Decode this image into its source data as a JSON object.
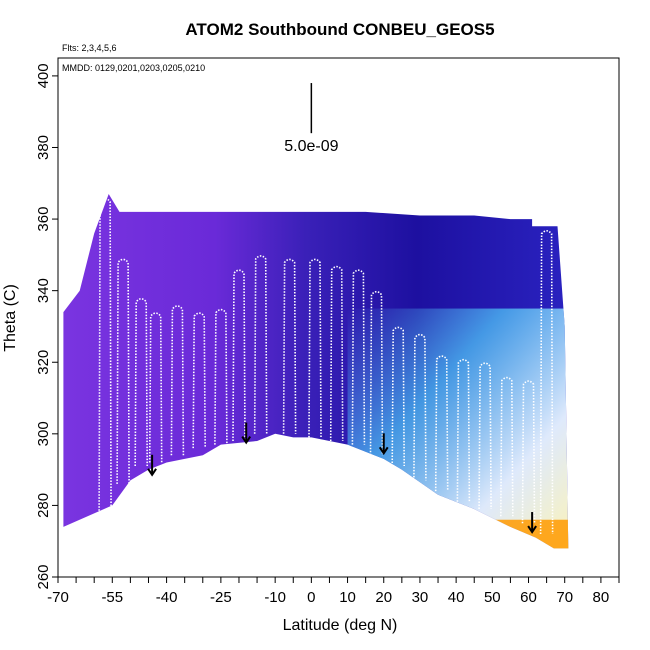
{
  "chart_data": {
    "type": "heatmap",
    "title": "ATOM2 Southbound CONBEU_GEOS5",
    "flights_note": "Flts: 2,3,4,5,6",
    "dates_note": "MMDD: 0129,0201,0203,0205,0210",
    "xlabel": "Latitude (deg N)",
    "ylabel": "Theta (C)",
    "xlim": [
      -70,
      85
    ],
    "ylim": [
      260,
      405
    ],
    "x_ticks": [
      -70,
      -55,
      -40,
      -25,
      -10,
      0,
      10,
      20,
      30,
      40,
      50,
      60,
      70,
      80
    ],
    "y_ticks": [
      260,
      280,
      300,
      320,
      340,
      360,
      380,
      400
    ],
    "scale_label": "5.0e-09",
    "scale_bar": {
      "x": 0,
      "y_top": 398,
      "y_bottom": 384
    },
    "colors": {
      "low_violet": "#7a34e0",
      "mid_blue": "#2a1aa8",
      "high_blue": "#3b6ef5",
      "cyan": "#4fc3f7",
      "pale": "#fff4b0",
      "orange": "#ff9a00"
    },
    "field_top": [
      [
        -68.5,
        334
      ],
      [
        -64,
        340
      ],
      [
        -60,
        356
      ],
      [
        -56,
        367
      ],
      [
        -53,
        362
      ],
      [
        -45,
        362
      ],
      [
        -30,
        362
      ],
      [
        -15,
        362
      ],
      [
        0,
        362
      ],
      [
        15,
        362
      ],
      [
        30,
        361
      ],
      [
        45,
        361
      ],
      [
        55,
        360
      ],
      [
        61,
        360
      ],
      [
        61,
        358
      ],
      [
        68,
        358
      ],
      [
        70,
        330
      ],
      [
        70.5,
        300
      ]
    ],
    "field_bottom": [
      [
        -68.5,
        274
      ],
      [
        -55,
        280
      ],
      [
        -50,
        287
      ],
      [
        -45,
        290
      ],
      [
        -40,
        292
      ],
      [
        -30,
        294
      ],
      [
        -25,
        297
      ],
      [
        -15,
        298
      ],
      [
        -10,
        300
      ],
      [
        -5,
        299
      ],
      [
        0,
        299
      ],
      [
        5,
        298
      ],
      [
        10,
        297
      ],
      [
        20,
        293
      ],
      [
        25,
        290
      ],
      [
        35,
        283
      ],
      [
        45,
        279
      ],
      [
        55,
        274
      ],
      [
        62,
        271
      ],
      [
        67,
        268
      ],
      [
        71,
        268
      ]
    ],
    "profiles": [
      {
        "x": -57,
        "top": 366,
        "bottom": 276
      },
      {
        "x": -52,
        "top": 349,
        "bottom": 286
      },
      {
        "x": -47,
        "top": 338,
        "bottom": 291
      },
      {
        "x": -43,
        "top": 334,
        "bottom": 292
      },
      {
        "x": -37,
        "top": 336,
        "bottom": 294
      },
      {
        "x": -31,
        "top": 334,
        "bottom": 296
      },
      {
        "x": -25,
        "top": 335,
        "bottom": 297
      },
      {
        "x": -20,
        "top": 346,
        "bottom": 298
      },
      {
        "x": -14,
        "top": 350,
        "bottom": 300
      },
      {
        "x": -6,
        "top": 349,
        "bottom": 300
      },
      {
        "x": 1,
        "top": 349,
        "bottom": 299
      },
      {
        "x": 7,
        "top": 347,
        "bottom": 298
      },
      {
        "x": 13,
        "top": 346,
        "bottom": 297
      },
      {
        "x": 18,
        "top": 340,
        "bottom": 294
      },
      {
        "x": 24,
        "top": 330,
        "bottom": 291
      },
      {
        "x": 30,
        "top": 328,
        "bottom": 287
      },
      {
        "x": 36,
        "top": 322,
        "bottom": 284
      },
      {
        "x": 42,
        "top": 321,
        "bottom": 281
      },
      {
        "x": 48,
        "top": 320,
        "bottom": 279
      },
      {
        "x": 54,
        "top": 316,
        "bottom": 277
      },
      {
        "x": 60,
        "top": 315,
        "bottom": 275
      },
      {
        "x": 65,
        "top": 357,
        "bottom": 272
      }
    ],
    "arrows": [
      {
        "x": -44,
        "y_top": 290,
        "y_bottom": 288
      },
      {
        "x": -18,
        "y_top": 298,
        "y_bottom": 297
      },
      {
        "x": 20,
        "y_top": 295,
        "y_bottom": 294
      },
      {
        "x": 61,
        "y_top": 274,
        "y_bottom": 272
      }
    ]
  }
}
